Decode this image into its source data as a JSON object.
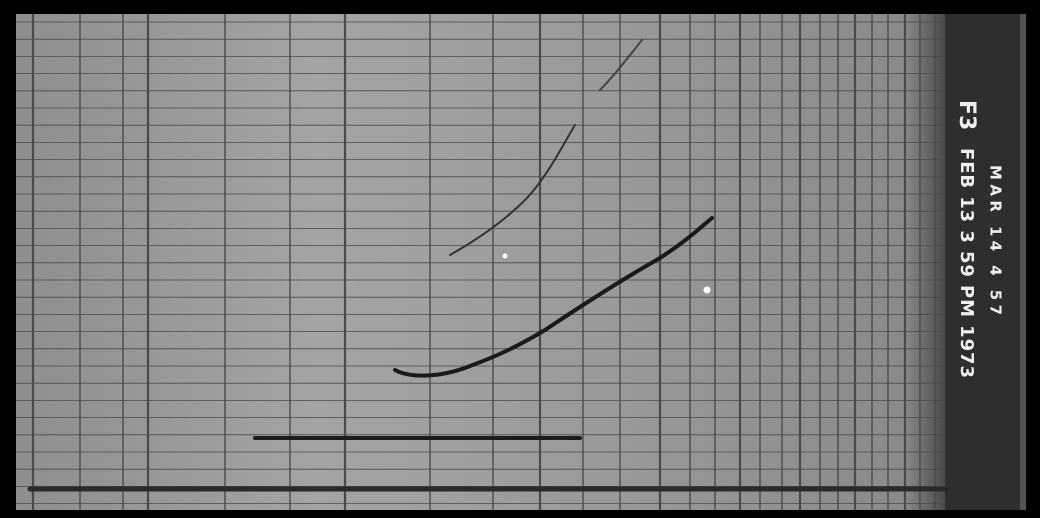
{
  "stamp": {
    "station": "F3",
    "date_line": "FEB 13 3 59 PM 1973",
    "second_line": "MAR 14 4 57"
  }
}
